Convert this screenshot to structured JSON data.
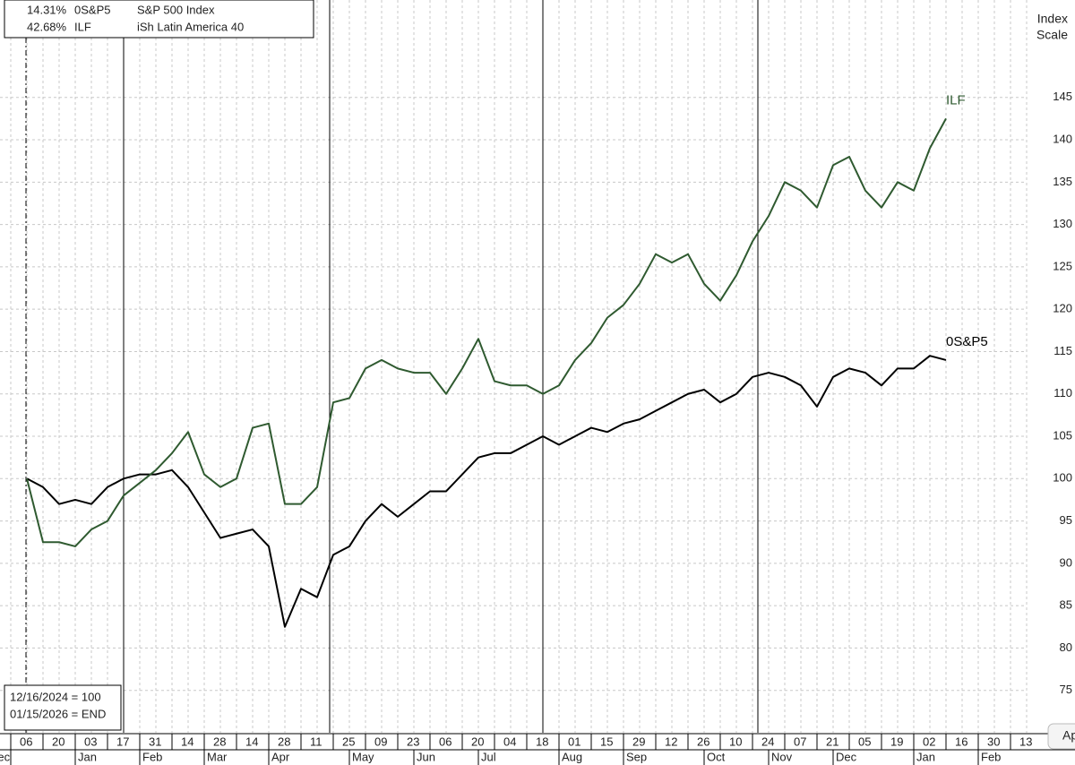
{
  "chart_data": {
    "type": "line",
    "y_axis_label": [
      "Index",
      "Scale"
    ],
    "base_note": "12/16/2024 = 100",
    "end_note": "01/15/2026 = END",
    "corner_button": "Ap",
    "ylim": [
      70,
      156.5
    ],
    "yticks": [
      75,
      80,
      85,
      90,
      95,
      100,
      105,
      110,
      115,
      120,
      125,
      130,
      135,
      140,
      145
    ],
    "grid": true,
    "categories": [
      "06",
      null,
      "20",
      null,
      "03",
      null,
      "17",
      null,
      "31",
      null,
      "14",
      null,
      "28",
      null,
      "14",
      null,
      "28",
      null,
      "11",
      null,
      "25",
      null,
      "09",
      null,
      "23",
      null,
      "06",
      null,
      "20",
      null,
      "04",
      null,
      "18",
      null,
      "01",
      null,
      "15",
      null,
      "29",
      null,
      "12",
      null,
      "26",
      null,
      "10",
      null,
      "24",
      null,
      "07",
      null,
      "21",
      null,
      "05",
      null,
      "19",
      null,
      "02",
      null,
      "16",
      null,
      "30",
      null,
      "13",
      null
    ],
    "month_categories": [
      "Dec",
      null,
      null,
      null,
      "Jan",
      null,
      null,
      null,
      "Feb",
      null,
      null,
      null,
      "Mar",
      null,
      null,
      null,
      "Apr",
      null,
      null,
      null,
      null,
      "May",
      null,
      null,
      null,
      "Jun",
      null,
      null,
      null,
      "Jul",
      null,
      null,
      null,
      null,
      "Aug",
      null,
      null,
      null,
      "Sep",
      null,
      null,
      null,
      null,
      "Oct",
      null,
      null,
      null,
      "Nov",
      null,
      null,
      null,
      "Dec",
      null,
      null,
      null,
      null,
      "Jan",
      null,
      null,
      null,
      "Feb",
      null,
      null,
      null
    ],
    "series": [
      {
        "name": "0S&P5",
        "description": "S&P 500 Index",
        "change": "14.31%",
        "color": "#000000",
        "values": [
          null,
          100,
          99,
          97,
          97.5,
          97,
          99,
          100,
          100.5,
          100.5,
          101,
          99,
          96,
          93,
          93.5,
          94,
          92,
          82.5,
          87,
          86,
          91,
          92,
          95,
          97,
          95.5,
          97,
          98.5,
          98.5,
          100.5,
          102.5,
          103,
          103,
          104,
          105,
          104,
          105,
          106,
          105.5,
          106.5,
          107,
          108,
          109,
          110,
          110.5,
          109,
          110,
          112,
          112.5,
          112,
          111,
          108.5,
          112,
          113,
          112.5,
          111,
          113,
          113,
          114.5,
          114,
          null,
          null,
          null,
          null,
          null
        ]
      },
      {
        "name": "ILF",
        "description": "iSh Latin America 40",
        "change": "42.68%",
        "color": "#2f5a30",
        "values": [
          null,
          100,
          92.5,
          92.5,
          92,
          94,
          95,
          98,
          99.5,
          101,
          103,
          105.5,
          100.5,
          99,
          100,
          106,
          106.5,
          97,
          97,
          99,
          109,
          109.5,
          113,
          114,
          113,
          112.5,
          112.5,
          110,
          113,
          116.5,
          111.5,
          111,
          111,
          110,
          111,
          114,
          116,
          119,
          120.5,
          123,
          126.5,
          125.5,
          126.5,
          123,
          121,
          124,
          128,
          131,
          135,
          134,
          132,
          137,
          138,
          134,
          132,
          135,
          134,
          139,
          142.5,
          null,
          null,
          null,
          null,
          null
        ]
      }
    ]
  }
}
